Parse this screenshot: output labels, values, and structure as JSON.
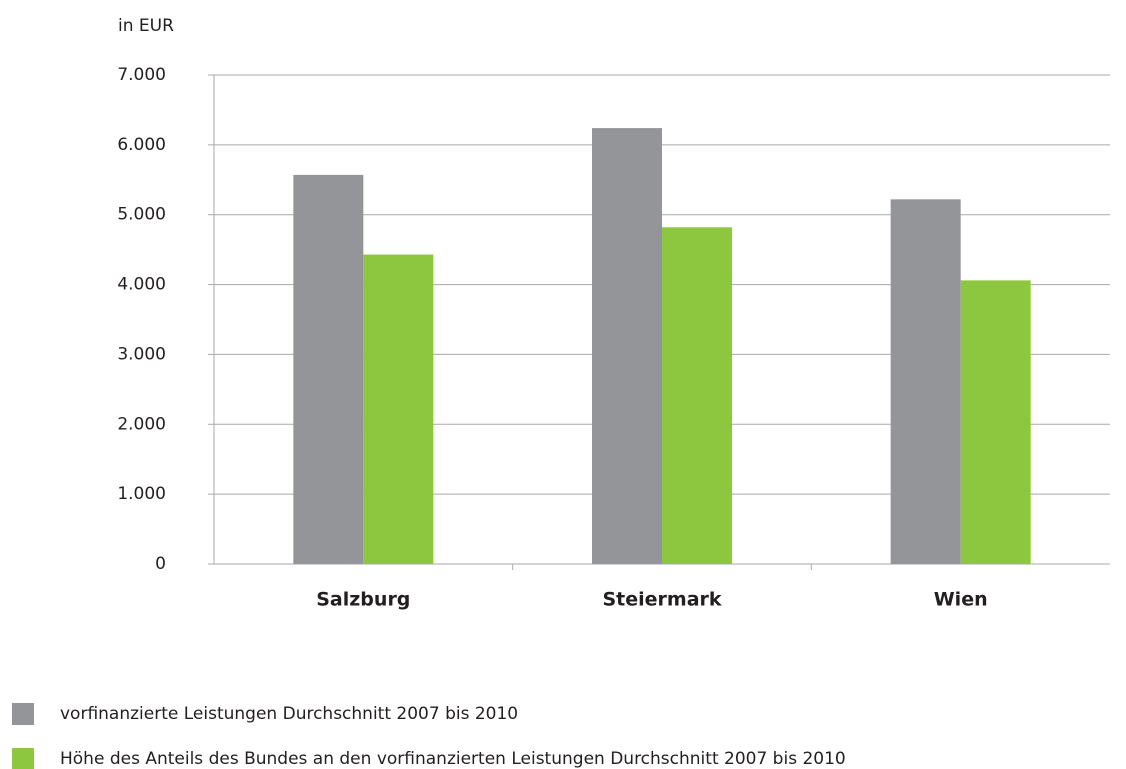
{
  "chart_data": {
    "type": "bar",
    "axis_label": "in EUR",
    "categories": [
      "Salzburg",
      "Steiermark",
      "Wien"
    ],
    "series": [
      {
        "name": "vorfinanzierte Leistungen Durchschnitt 2007 bis 2010",
        "color": "#939598",
        "values": [
          5570,
          6240,
          5220
        ]
      },
      {
        "name": "Höhe des Anteils des Bundes an den vorfinanzierten Leistungen Durchschnitt 2007 bis 2010",
        "color": "#8dc63f",
        "values": [
          4430,
          4820,
          4060
        ]
      }
    ],
    "ylim": [
      0,
      7000
    ],
    "yticks": [
      0,
      {
        "value": 1000,
        "label": "1.000"
      },
      {
        "value": 2000,
        "label": "2.000"
      },
      {
        "value": 3000,
        "label": "3.000"
      },
      {
        "value": 4000,
        "label": "4.000"
      },
      {
        "value": 5000,
        "label": "5.000"
      },
      {
        "value": 6000,
        "label": "6.000"
      },
      {
        "value": 7000,
        "label": "7.000"
      }
    ],
    "grid": true
  }
}
